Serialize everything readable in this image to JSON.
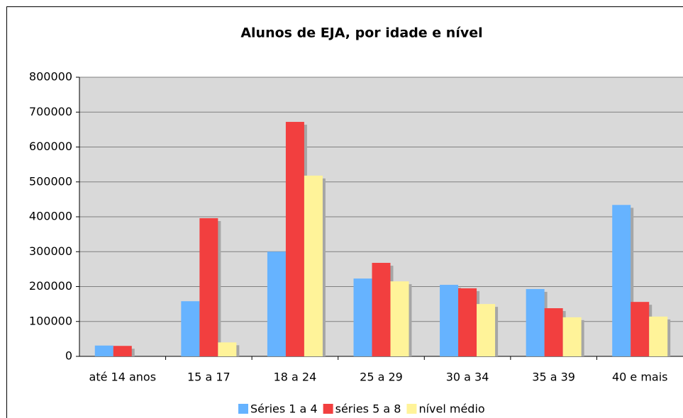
{
  "chart_data": {
    "type": "bar",
    "title": "Alunos de EJA, por idade e nível",
    "categories": [
      "até 14 anos",
      "15 a 17",
      "18 a 24",
      "25 a 29",
      "30 a 34",
      "35 a 39",
      "40 e mais"
    ],
    "series": [
      {
        "name": "Séries 1 a 4",
        "color": "#66b3ff",
        "values": [
          31000,
          158000,
          300000,
          223000,
          205000,
          193000,
          434000
        ]
      },
      {
        "name": "séries 5 a 8",
        "color": "#f23f3f",
        "values": [
          30000,
          396000,
          672000,
          268000,
          195000,
          138000,
          156000
        ]
      },
      {
        "name": "nível médio",
        "color": "#fff399",
        "values": [
          0,
          40000,
          518000,
          215000,
          150000,
          112000,
          114000
        ]
      }
    ],
    "ylim": [
      0,
      800000
    ],
    "yticks": [
      0,
      100000,
      200000,
      300000,
      400000,
      500000,
      600000,
      700000,
      800000
    ],
    "grid": true,
    "legend": "bottom"
  }
}
